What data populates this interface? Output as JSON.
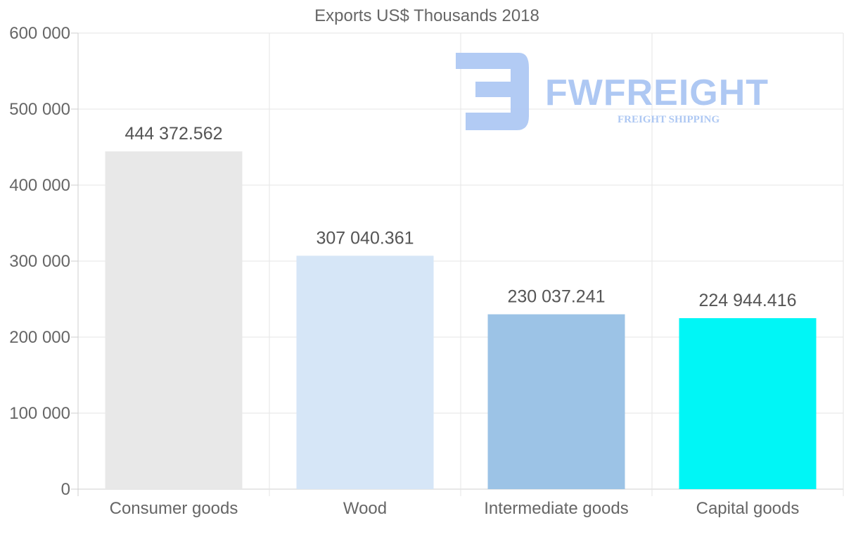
{
  "chart_data": {
    "type": "bar",
    "title": "Exports US$ Thousands 2018",
    "categories": [
      "Consumer goods",
      "Wood",
      "Intermediate goods",
      "Capital goods"
    ],
    "values": [
      444372.562,
      307040.361,
      230037.241,
      224944.416
    ],
    "value_labels": [
      "444 372.562",
      "307 040.361",
      "230 037.241",
      "224 944.416"
    ],
    "bar_colors": [
      "#e8e8e8",
      "#d6e6f7",
      "#9cc3e6",
      "#00f6f6"
    ],
    "ylim": [
      0,
      600000
    ],
    "yticks": [
      0,
      100000,
      200000,
      300000,
      400000,
      500000,
      600000
    ],
    "ytick_labels": [
      "0",
      "100 000",
      "200 000",
      "300 000",
      "400 000",
      "500 000",
      "600 000"
    ],
    "xlabel": "",
    "ylabel": "",
    "grid": true,
    "legend": "none"
  },
  "watermark": {
    "brand": "FWFREIGHT",
    "tagline": "FREIGHT SHIPPING"
  }
}
